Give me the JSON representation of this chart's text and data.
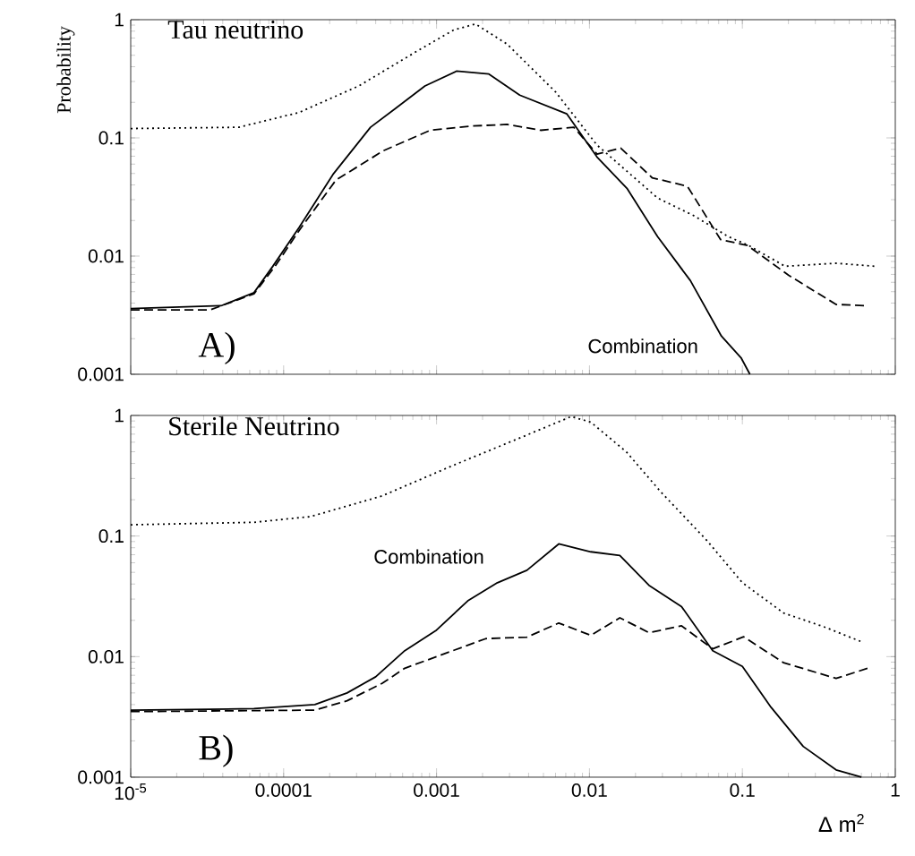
{
  "chart_data": [
    {
      "type": "line",
      "title": "Tau neutrino",
      "ylabel": "Probability",
      "log": "xy",
      "xlim": [
        1e-05,
        1
      ],
      "ylim": [
        0.001,
        1
      ],
      "xticks": [
        1e-05,
        0.0001,
        0.001,
        0.01,
        0.1,
        1
      ],
      "yticks": [
        0.001,
        0.01,
        0.1,
        1
      ],
      "tick_labels": "y",
      "annotations": [
        "A)",
        "Combination"
      ],
      "series": [
        {
          "color": "#000000",
          "line_style": "solid",
          "x": [
            1e-05,
            3.9e-05,
            6.4e-05,
            8.5e-05,
            0.000126,
            0.00021,
            0.00037,
            0.00054,
            0.00084,
            0.00135,
            0.0022,
            0.0035,
            0.0071,
            0.0112,
            0.0177,
            0.0279,
            0.0457,
            0.073,
            0.098,
            0.112
          ],
          "values": [
            0.0036,
            0.0038,
            0.0049,
            0.0082,
            0.0174,
            0.049,
            0.123,
            0.178,
            0.275,
            0.367,
            0.347,
            0.23,
            0.16,
            0.069,
            0.037,
            0.0146,
            0.0062,
            0.0021,
            0.00138,
            0.001
          ]
        },
        {
          "color": "#000000",
          "line_style": "dashed",
          "x": [
            1e-05,
            3.3e-05,
            6.4e-05,
            8.8e-05,
            0.000126,
            0.00022,
            0.00045,
            0.00091,
            0.0017,
            0.0029,
            0.0048,
            0.0079,
            0.0112,
            0.016,
            0.0257,
            0.0437,
            0.072,
            0.108,
            0.2,
            0.41,
            0.65
          ],
          "values": [
            0.0035,
            0.0035,
            0.0048,
            0.0082,
            0.0164,
            0.044,
            0.078,
            0.116,
            0.126,
            0.13,
            0.116,
            0.123,
            0.073,
            0.082,
            0.046,
            0.039,
            0.0138,
            0.0123,
            0.0069,
            0.0039,
            0.0038
          ]
        },
        {
          "color": "#000000",
          "line_style": "dotted",
          "x": [
            1e-05,
            5.1e-05,
            0.000126,
            0.00031,
            0.00076,
            0.0013,
            0.0018,
            0.0029,
            0.006,
            0.0112,
            0.0279,
            0.048,
            0.081,
            0.11,
            0.19,
            0.41,
            0.74
          ],
          "values": [
            0.12,
            0.123,
            0.164,
            0.275,
            0.55,
            0.82,
            0.92,
            0.62,
            0.245,
            0.087,
            0.031,
            0.022,
            0.0146,
            0.0123,
            0.0082,
            0.0087,
            0.0082
          ]
        }
      ]
    },
    {
      "type": "line",
      "title": "Sterile Neutrino",
      "xlabel": "Δ  m$^{2}$",
      "log": "xy",
      "xlim": [
        1e-05,
        1
      ],
      "ylim": [
        0.001,
        1
      ],
      "xticks": [
        {
          "value": 1e-05,
          "label": "10$^{-5}$"
        },
        0.0001,
        0.001,
        0.01,
        0.1,
        1
      ],
      "yticks": [
        0.001,
        0.01,
        0.1,
        1
      ],
      "annotations": [
        "B)",
        "Combination"
      ],
      "series": [
        {
          "color": "#000000",
          "line_style": "solid",
          "x": [
            1e-05,
            6.4e-05,
            0.00016,
            0.00026,
            0.0004,
            0.00062,
            0.001,
            0.0016,
            0.0025,
            0.0039,
            0.0063,
            0.0102,
            0.0158,
            0.0245,
            0.04,
            0.064,
            0.1,
            0.154,
            0.25,
            0.41,
            0.6
          ],
          "values": [
            0.0036,
            0.0037,
            0.004,
            0.005,
            0.0068,
            0.0112,
            0.0166,
            0.029,
            0.041,
            0.052,
            0.086,
            0.074,
            0.069,
            0.039,
            0.026,
            0.0112,
            0.0083,
            0.0038,
            0.0018,
            0.00115,
            0.001
          ]
        },
        {
          "color": "#000000",
          "line_style": "dashed",
          "x": [
            1e-05,
            0.00016,
            0.00026,
            0.00044,
            0.00062,
            0.001,
            0.0021,
            0.0039,
            0.0063,
            0.0102,
            0.0158,
            0.0245,
            0.04,
            0.064,
            0.102,
            0.186,
            0.41,
            0.66
          ],
          "values": [
            0.0035,
            0.0036,
            0.0043,
            0.006,
            0.008,
            0.01,
            0.0141,
            0.0145,
            0.019,
            0.015,
            0.021,
            0.0158,
            0.018,
            0.0116,
            0.0146,
            0.0089,
            0.0066,
            0.008
          ]
        },
        {
          "color": "#000000",
          "line_style": "dotted",
          "x": [
            1e-05,
            6.4e-05,
            0.00015,
            0.00044,
            0.00125,
            0.0036,
            0.0076,
            0.0102,
            0.0174,
            0.0295,
            0.059,
            0.1,
            0.186,
            0.34,
            0.6
          ],
          "values": [
            0.124,
            0.13,
            0.145,
            0.215,
            0.38,
            0.66,
            0.98,
            0.88,
            0.5,
            0.23,
            0.091,
            0.041,
            0.023,
            0.0177,
            0.0133
          ]
        }
      ]
    }
  ]
}
